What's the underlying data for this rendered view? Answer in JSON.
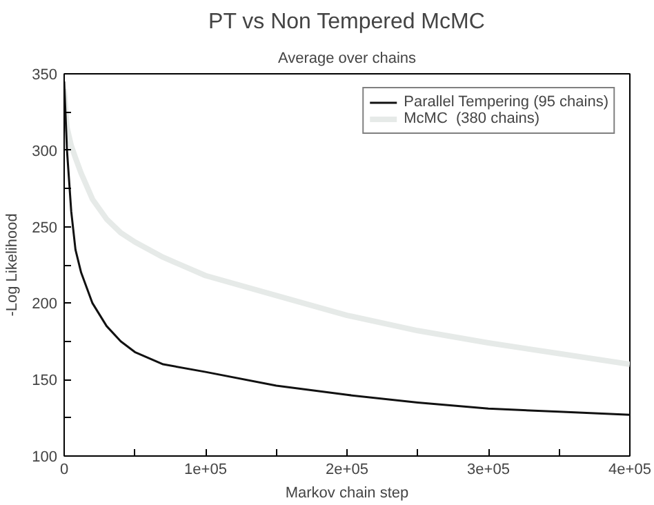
{
  "chart_data": {
    "type": "line",
    "title": "PT vs Non Tempered McMC",
    "subtitle": "Average over chains",
    "xlabel": "Markov chain step",
    "ylabel": "-Log Likelihood",
    "xlim": [
      0,
      400000
    ],
    "ylim": [
      100,
      350
    ],
    "xticks": [
      {
        "value": 0,
        "label": "0"
      },
      {
        "value": 50000,
        "label": null
      },
      {
        "value": 100000,
        "label": "1e+05"
      },
      {
        "value": 150000,
        "label": null
      },
      {
        "value": 200000,
        "label": "2e+05"
      },
      {
        "value": 250000,
        "label": null
      },
      {
        "value": 300000,
        "label": "3e+05"
      },
      {
        "value": 350000,
        "label": null
      },
      {
        "value": 400000,
        "label": "4e+05"
      }
    ],
    "yticks": [
      100,
      {
        "value": 125,
        "label": null
      },
      150,
      {
        "value": 175,
        "label": null
      },
      200,
      {
        "value": 225,
        "label": null
      },
      250,
      {
        "value": 275,
        "label": null
      },
      300,
      {
        "value": 325,
        "label": null
      },
      350
    ],
    "grid": false,
    "legend": "top right",
    "x": [
      0,
      2000,
      5000,
      8000,
      12000,
      20000,
      30000,
      40000,
      50000,
      70000,
      100000,
      150000,
      200000,
      250000,
      300000,
      350000,
      400000
    ],
    "series": [
      {
        "name": "Parallel Tempering (95 chains)",
        "color": "#111111",
        "values": [
          345,
          300,
          260,
          235,
          220,
          200,
          185,
          175,
          168,
          160,
          155,
          146,
          140,
          135,
          131,
          129,
          127
        ]
      },
      {
        "name": "McMC  (380 chains)",
        "color": "#e6eae8",
        "values": [
          340,
          315,
          303,
          295,
          285,
          268,
          255,
          246,
          240,
          230,
          218,
          205,
          192,
          182,
          174,
          167,
          160
        ]
      }
    ]
  }
}
